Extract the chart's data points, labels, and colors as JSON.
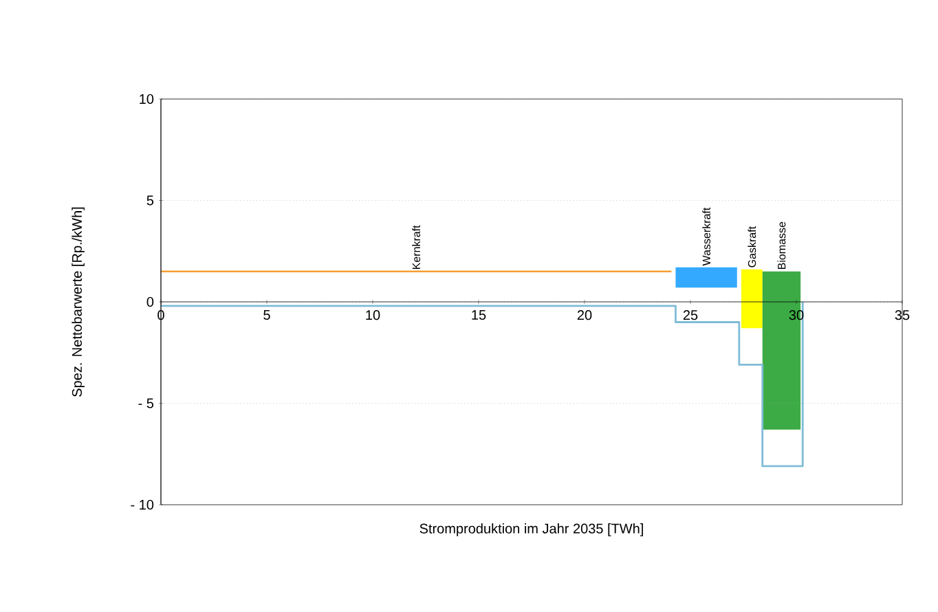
{
  "chart_data": {
    "type": "line",
    "xlabel": "Stromproduktion im Jahr 2035 [TWh]",
    "ylabel": "Spez. Nettobarwerte [Rp./kWh]",
    "xlim": [
      0,
      35
    ],
    "ylim": [
      -10,
      10
    ],
    "xticks": [
      0,
      5,
      10,
      15,
      20,
      25,
      30,
      35
    ],
    "yticks": [
      {
        "value": -10,
        "label": "- 10"
      },
      {
        "value": -5,
        "label": "- 5"
      },
      0,
      5,
      10
    ],
    "grid": "y",
    "series": [
      {
        "name": "Kernkraft",
        "color": "#f5a030",
        "x": [
          0,
          24.1
        ],
        "values": [
          1.5,
          1.5
        ]
      },
      {
        "name": "Wasserkraft",
        "type": "histogram",
        "color": "#33aaff",
        "bins": [
          24.3,
          27.2
        ],
        "values": [
          1.0
        ],
        "base": [
          0.7
        ]
      },
      {
        "name": "Gaskraft",
        "type": "histogram",
        "color": "#ffff00",
        "bins": [
          27.4,
          28.4
        ],
        "values": [
          2.9
        ],
        "base": [
          -1.3
        ]
      },
      {
        "name": "Biomasse",
        "type": "histogram",
        "color": "#3cab45",
        "bins": [
          28.4,
          30.2
        ],
        "values": [
          7.8
        ],
        "base": [
          -6.3
        ]
      },
      {
        "type": "step",
        "color": "#7fbcd6",
        "x": [
          0,
          24.3,
          27.3,
          28.4,
          30.3
        ],
        "values": [
          -0.2,
          -1.0,
          -3.1,
          -8.1,
          0
        ]
      }
    ]
  }
}
